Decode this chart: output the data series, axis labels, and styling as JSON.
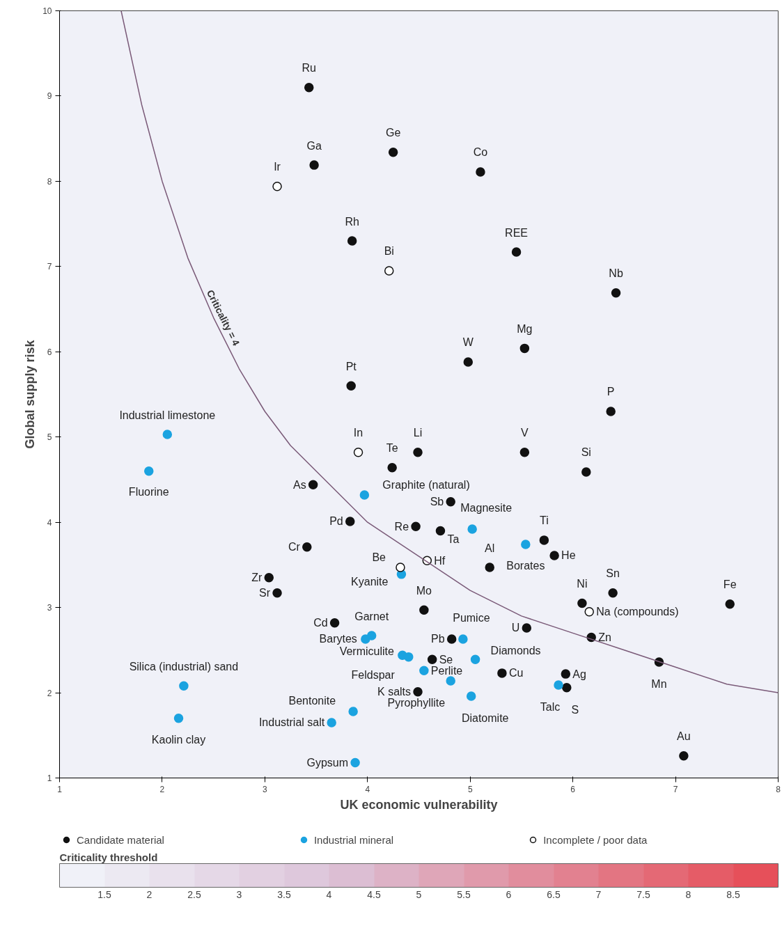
{
  "chart_data": {
    "type": "scatter",
    "xlabel": "UK economic vulnerability",
    "ylabel": "Global supply risk",
    "xlim": [
      1,
      8
    ],
    "ylim": [
      1,
      10
    ],
    "xticks": [
      1,
      2,
      3,
      4,
      5,
      6,
      7,
      8
    ],
    "yticks": [
      1,
      2,
      3,
      4,
      5,
      6,
      7,
      8,
      9,
      10
    ],
    "grid": false,
    "legend": "bottom",
    "marker": "circle",
    "clabel": "Criticality threshold",
    "clim": [
      1,
      9
    ],
    "cticks": [
      1.5,
      2,
      2.5,
      3,
      3.5,
      4,
      4.5,
      5,
      5.5,
      6,
      6.5,
      7,
      7.5,
      8,
      8.5
    ],
    "annotations": [
      {
        "text": "Criticality = 4",
        "x": 2.5,
        "y": 6.4
      }
    ],
    "series": [
      {
        "name": "Candidate material",
        "color": "#111111",
        "x": [
          3.43,
          3.48,
          4.25,
          5.1,
          3.85,
          5.45,
          6.42,
          5.53,
          4.98,
          3.84,
          6.37,
          4.49,
          4.24,
          5.53,
          6.13,
          3.47,
          4.81,
          3.83,
          4.47,
          4.71,
          5.72,
          3.41,
          5.82,
          5.19,
          3.04,
          3.12,
          6.09,
          6.39,
          7.53,
          4.55,
          3.68,
          5.55,
          6.18,
          4.82,
          4.63,
          6.84,
          5.31,
          5.93,
          5.94,
          4.49,
          7.08
        ],
        "values": [
          9.1,
          8.19,
          8.34,
          8.11,
          7.3,
          7.17,
          6.69,
          6.04,
          5.88,
          5.6,
          5.3,
          4.82,
          4.64,
          4.82,
          4.59,
          4.44,
          4.24,
          4.01,
          3.95,
          3.9,
          3.79,
          3.71,
          3.61,
          3.47,
          3.35,
          3.17,
          3.05,
          3.17,
          3.04,
          2.97,
          2.82,
          2.76,
          2.65,
          2.63,
          2.39,
          2.36,
          2.23,
          2.22,
          2.06,
          2.01,
          1.26
        ],
        "value_labels": [
          "Ru",
          "Ga",
          "Ge",
          "Co",
          "Rh",
          "REE",
          "Nb",
          "Mg",
          "W",
          "Pt",
          "P",
          "Li",
          "Te",
          "V",
          "Si",
          "As",
          "Sb",
          "Pd",
          "Re",
          "Ta",
          "Ti",
          "Cr",
          "He",
          "Al",
          "Zr",
          "Sr",
          "Ni",
          "Sn",
          "Fe",
          "Mo",
          "Cd",
          "U",
          "Zn",
          "Pb",
          "Se",
          "Mn",
          "Cu",
          "Ag",
          "S",
          "K salts",
          "Au"
        ]
      },
      {
        "name": "Industrial mineral",
        "color": "#1ba3e0",
        "x": [
          2.05,
          1.87,
          3.97,
          5.02,
          5.54,
          4.33,
          4.04,
          3.98,
          4.93,
          4.34,
          4.4,
          5.05,
          4.55,
          4.81,
          2.21,
          5.86,
          5.01,
          3.86,
          2.16,
          3.65,
          3.88
        ],
        "values": [
          5.03,
          4.6,
          4.32,
          3.92,
          3.74,
          3.39,
          2.67,
          2.63,
          2.63,
          2.44,
          2.42,
          2.39,
          2.26,
          2.14,
          2.08,
          2.09,
          1.96,
          1.78,
          1.7,
          1.65,
          1.18
        ],
        "value_labels": [
          "Industrial limestone",
          "Fluorine",
          "Graphite (natural)",
          "Magnesite",
          "Borates",
          "Kyanite",
          "Garnet",
          "Barytes",
          "Pumice",
          "Vermiculite",
          "Feldspar",
          "Diamonds",
          "Perlite",
          "Pyrophyllite",
          "Silica (industrial) sand",
          "Talc",
          "Diatomite",
          "Bentonite",
          "Kaolin clay",
          "Industrial salt",
          "Gypsum"
        ]
      },
      {
        "name": "Incomplete / poor data",
        "color": "#ffffff",
        "x": [
          3.12,
          4.21,
          3.91,
          4.32,
          4.58,
          6.16
        ],
        "values": [
          7.94,
          6.95,
          4.82,
          3.47,
          3.55,
          2.95
        ],
        "value_labels": [
          "Ir",
          "Bi",
          "In",
          "Be",
          "Hf",
          "Na (compounds)"
        ]
      },
      {
        "type": "line",
        "marker": "none",
        "color": "#7a5a78",
        "x": [
          1.6,
          1.8,
          2,
          2.25,
          2.5,
          2.75,
          3,
          3.25,
          3.5,
          3.75,
          4,
          4.5,
          5,
          5.5,
          6,
          6.5,
          7,
          7.5,
          8
        ],
        "values": [
          10,
          8.9,
          8,
          7.1,
          6.4,
          5.8,
          5.3,
          4.9,
          4.6,
          4.3,
          4,
          3.6,
          3.2,
          2.9,
          2.7,
          2.5,
          2.3,
          2.1,
          2
        ]
      }
    ]
  }
}
